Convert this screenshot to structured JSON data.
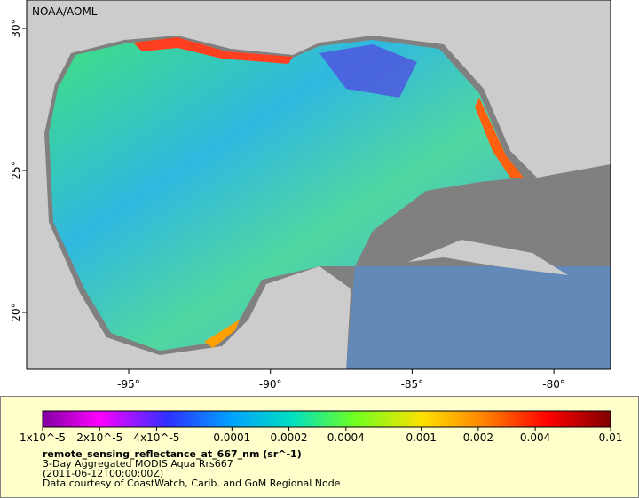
{
  "map": {
    "credit": "NOAA/AOML",
    "xlim": [
      -98.6,
      -78.0
    ],
    "ylim": [
      18,
      31
    ],
    "lon_ticks": [
      {
        "value": -95,
        "label": "-95°"
      },
      {
        "value": -90,
        "label": "-90°"
      },
      {
        "value": -85,
        "label": "-85°"
      },
      {
        "value": -80,
        "label": "-80°"
      }
    ],
    "lat_ticks": [
      {
        "value": 30,
        "label": "30°"
      },
      {
        "value": 25,
        "label": "25°"
      },
      {
        "value": 20,
        "label": "20°"
      }
    ]
  },
  "colorbar": {
    "scale": "log",
    "lim": [
      1e-05,
      0.01
    ],
    "ticks": [
      {
        "value": 1e-05,
        "label": "1x10^-5"
      },
      {
        "value": 2e-05,
        "label": "2x10^-5"
      },
      {
        "value": 4e-05,
        "label": "4x10^-5"
      },
      {
        "value": 0.0001,
        "label": "0.0001"
      },
      {
        "value": 0.0002,
        "label": "0.0002"
      },
      {
        "value": 0.0004,
        "label": "0.0004"
      },
      {
        "value": 0.001,
        "label": "0.001"
      },
      {
        "value": 0.002,
        "label": "0.002"
      },
      {
        "value": 0.004,
        "label": "0.004"
      },
      {
        "value": 0.01,
        "label": "0.01"
      }
    ]
  },
  "legend": {
    "variable": "remote_sensing_reflectance_at_667_nm (sr^-1)",
    "dataset": "3-Day Aggregated MODIS Aqua Rrs667",
    "time": "(2011-06-12T00:00:00Z)",
    "source": "Data courtesy of CoastWatch, Carib. and GoM Regional Node"
  }
}
